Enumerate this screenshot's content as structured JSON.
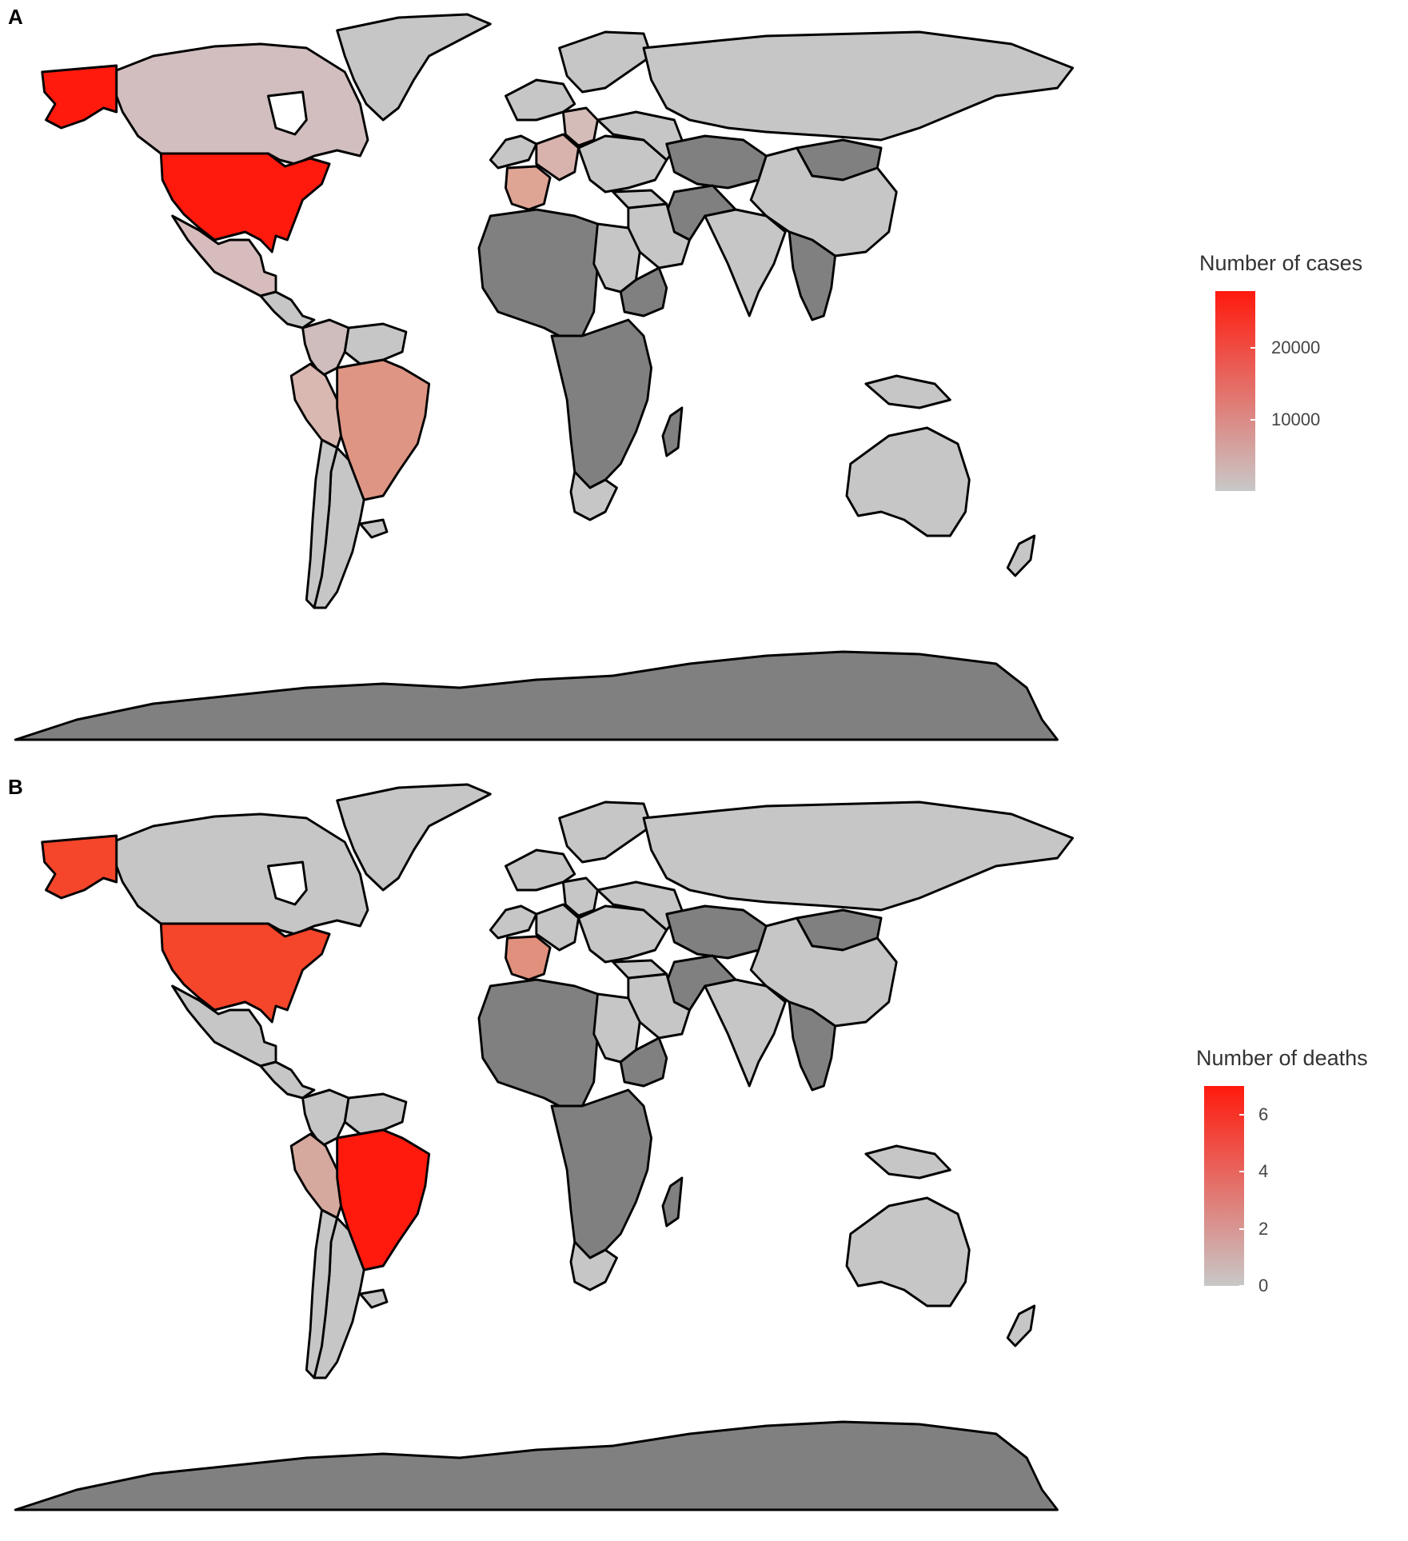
{
  "panels": [
    {
      "letter": "A",
      "legend": {
        "title": "Number of cases",
        "scale_min": 0,
        "scale_max": 28000,
        "ticks": [
          {
            "value": 20000,
            "label": "20000"
          },
          {
            "value": 10000,
            "label": "10000"
          }
        ],
        "low_color": "#c8c8c8",
        "high_color": "#ff1a0d"
      },
      "colors": {
        "no_data": "#808080",
        "canada": "#d2bebe",
        "usa": "#ff1a0d",
        "alaska": "#ff1a0d",
        "mexico": "#d6bcbc",
        "brazil": "#df9584",
        "peru": "#d8b8b0",
        "colombia": "#cfbcbc",
        "spain": "#dea494",
        "france": "#d8b2ac",
        "germany": "#d4bcb8",
        "default_light": "#c6c6c6"
      }
    },
    {
      "letter": "B",
      "legend": {
        "title": "Number of deaths",
        "scale_min": 0,
        "scale_max": 7,
        "ticks": [
          {
            "value": 6,
            "label": "6"
          },
          {
            "value": 4,
            "label": "4"
          },
          {
            "value": 2,
            "label": "2"
          },
          {
            "value": 0,
            "label": "0"
          }
        ],
        "low_color": "#c8c8c8",
        "high_color": "#ff1a0d"
      },
      "colors": {
        "no_data": "#808080",
        "canada": "#c6c6c6",
        "usa": "#f5452a",
        "alaska": "#f5452a",
        "mexico": "#c6c6c6",
        "brazil": "#ff1a0d",
        "peru": "#d6a99e",
        "colombia": "#c6c6c6",
        "spain": "#e0907c",
        "france": "#c6c6c6",
        "germany": "#c6c6c6",
        "india": "#d6aa9f",
        "sudan": "#d9b0a6",
        "default_light": "#c6c6c6"
      }
    }
  ]
}
